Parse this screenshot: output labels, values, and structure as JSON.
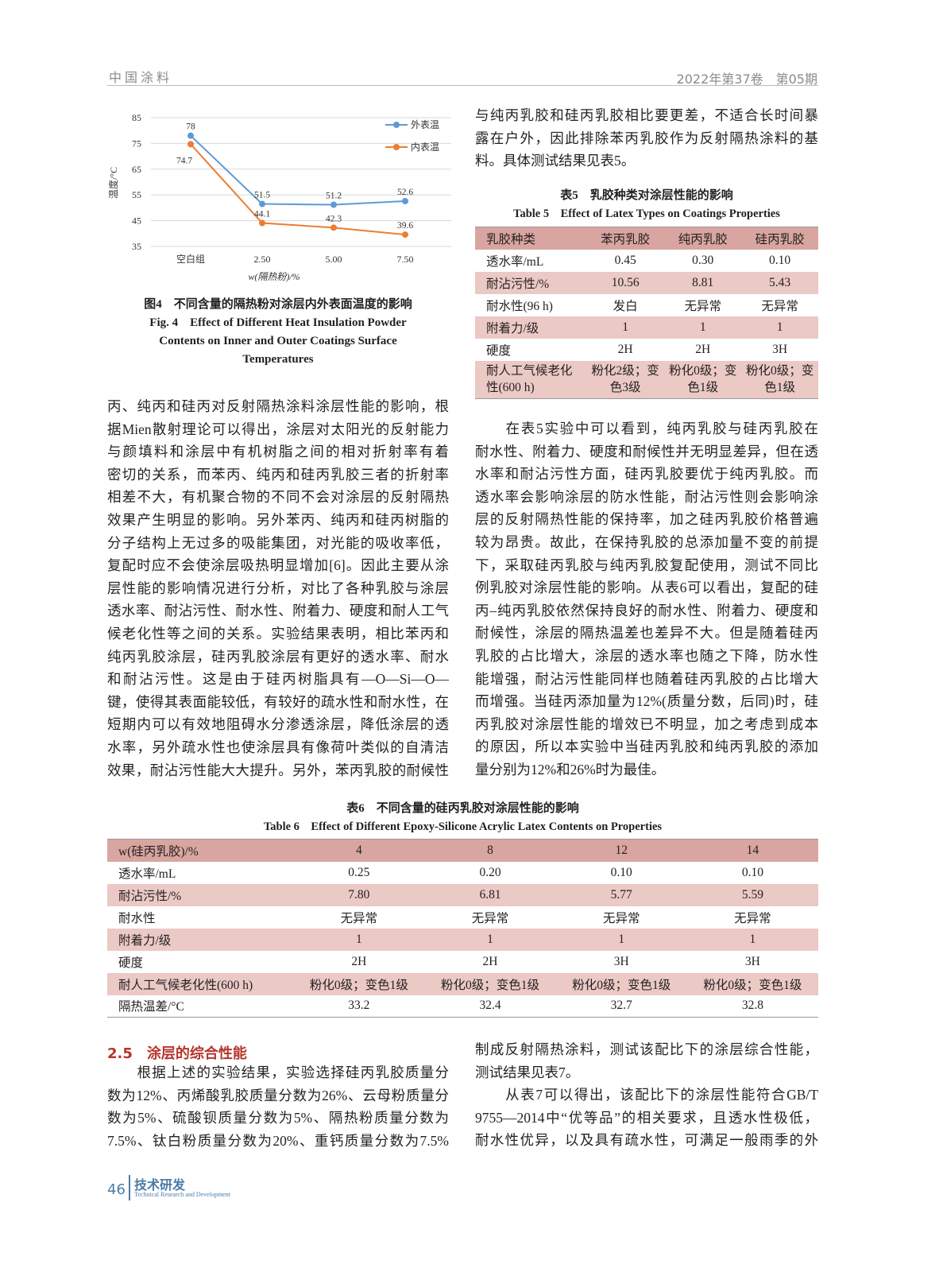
{
  "header": {
    "journal": "中国涂料",
    "issue": "2022年第37卷　第05期"
  },
  "figure4": {
    "caption_cn": "图4　不同含量的隔热粉对涂层内外表面温度的影响",
    "caption_en": [
      "Fig. 4　Effect of Different Heat Insulation Powder",
      "Contents on Inner and Outer Coatings Surface",
      "Temperatures"
    ]
  },
  "chart_data": {
    "type": "line",
    "categories": [
      "空白组",
      "2.50",
      "5.00",
      "7.50"
    ],
    "xlabel": "w(隔热粉)/%",
    "ylabel": "温度/°C",
    "ylim": [
      35,
      85
    ],
    "yticks": [
      "35",
      "45",
      "55",
      "65",
      "75",
      "85"
    ],
    "grid": true,
    "legend": "top-right",
    "series": [
      {
        "name": "外表温",
        "values": [
          78,
          51.5,
          51.2,
          52.6
        ],
        "labels": [
          "78",
          "51.5",
          "51.2",
          "52.6"
        ],
        "color": "#5b9bd5"
      },
      {
        "name": "内表温",
        "values": [
          74.7,
          44.1,
          42.3,
          39.6
        ],
        "labels": [
          "74.7",
          "44.1",
          "42.3",
          "39.6"
        ],
        "color": "#ed7d31"
      }
    ]
  },
  "left_para1": [
    "丙、纯丙和硅丙对反射隔热涂料涂层性能的影响，根",
    "据Mien散射理论可以得出，涂层对太阳光的反射能力",
    "与颜填料和涂层中有机树脂之间的相对折射率有着",
    "密切的关系，而苯丙、纯丙和硅丙乳胶三者的折射率",
    "相差不大，有机聚合物的不同不会对涂层的反射隔热",
    "效果产生明显的影响。另外苯丙、纯丙和硅丙树脂的",
    "分子结构上无过多的吸能集团，对光能的吸收率低，",
    "复配时应不会使涂层吸热明显增加[6]。因此主要从涂",
    "层性能的影响情况进行分析，对比了各种乳胶与涂层",
    "透水率、耐沾污性、耐水性、附着力、硬度和耐人工气",
    "候老化性等之间的关系。实验结果表明，相比苯丙和",
    "纯丙乳胶涂层，硅丙乳胶涂层有更好的透水率、耐水",
    "和耐沾污性。这是由于硅丙树脂具有—O—Si—O—",
    "键，使得其表面能较低，有较好的疏水性和耐水性，在",
    "短期内可以有效地阻碍水分渗透涂层，降低涂层的透",
    "水率，另外疏水性也使涂层具有像荷叶类似的自清洁",
    "效果，耐沾污性能大大提升。另外，苯丙乳胶的耐候性"
  ],
  "right_para1": [
    "与纯丙乳胶和硅丙乳胶相比要更差，不适合长时间暴",
    "露在户外，因此排除苯丙乳胶作为反射隔热涂料的基",
    "料。具体测试结果见表5。"
  ],
  "table5": {
    "title_cn": "表5　乳胶种类对涂层性能的影响",
    "title_en": "Table 5　Effect of Latex Types on Coatings Properties",
    "header": [
      "乳胶种类",
      "苯丙乳胶",
      "纯丙乳胶",
      "硅丙乳胶"
    ],
    "rows": [
      [
        "透水率/mL",
        "0.45",
        "0.30",
        "0.10"
      ],
      [
        "耐沾污性/%",
        "10.56",
        "8.81",
        "5.43"
      ],
      [
        "耐水性(96 h)",
        "发白",
        "无异常",
        "无异常"
      ],
      [
        "附着力/级",
        "1",
        "1",
        "1"
      ],
      [
        "硬度",
        "2H",
        "2H",
        "3H"
      ],
      [
        "耐人工气候老化性(600 h)",
        "粉化2级；变色3级",
        "粉化0级；变色1级",
        "粉化0级；变色1级"
      ]
    ]
  },
  "right_para2": [
    "　　在表5实验中可以看到，纯丙乳胶与硅丙乳胶在",
    "耐水性、附着力、硬度和耐候性并无明显差异，但在透",
    "水率和耐沾污性方面，硅丙乳胶要优于纯丙乳胶。而",
    "透水率会影响涂层的防水性能，耐沾污性则会影响涂",
    "层的反射隔热性能的保持率，加之硅丙乳胶价格普遍",
    "较为昂贵。故此，在保持乳胶的总添加量不变的前提",
    "下，采取硅丙乳胶与纯丙乳胶复配使用，测试不同比",
    "例乳胶对涂层性能的影响。从表6可以看出，复配的硅",
    "丙–纯丙乳胶依然保持良好的耐水性、附着力、硬度和",
    "耐候性，涂层的隔热温差也差异不大。但是随着硅丙",
    "乳胶的占比增大，涂层的透水率也随之下降，防水性",
    "能增强，耐沾污性能同样也随着硅丙乳胶的占比增大",
    "而增强。当硅丙添加量为12%(质量分数，后同)时，硅",
    "丙乳胶对涂层性能的增效已不明显，加之考虑到成本",
    "的原因，所以本实验中当硅丙乳胶和纯丙乳胶的添加",
    "量分别为12%和26%时为最佳。"
  ],
  "table6": {
    "title_cn": "表6　不同含量的硅丙乳胶对涂层性能的影响",
    "title_en": "Table 6　Effect of Different Epoxy-Silicone Acrylic Latex Contents on Properties",
    "header": [
      "w(硅丙乳胶)/%",
      "4",
      "8",
      "12",
      "14"
    ],
    "rows": [
      [
        "透水率/mL",
        "0.25",
        "0.20",
        "0.10",
        "0.10"
      ],
      [
        "耐沾污性/%",
        "7.80",
        "6.81",
        "5.77",
        "5.59"
      ],
      [
        "耐水性",
        "无异常",
        "无异常",
        "无异常",
        "无异常"
      ],
      [
        "附着力/级",
        "1",
        "1",
        "1",
        "1"
      ],
      [
        "硬度",
        "2H",
        "2H",
        "3H",
        "3H"
      ],
      [
        "耐人工气候老化性(600 h)",
        "粉化0级；变色1级",
        "粉化0级；变色1级",
        "粉化0级；变色1级",
        "粉化0级；变色1级"
      ],
      [
        "隔热温差/°C",
        "33.2",
        "32.4",
        "32.7",
        "32.8"
      ]
    ]
  },
  "section": {
    "title": "2.5　涂层的综合性能"
  },
  "left_para2": [
    "　　根据上述的实验结果，实验选择硅丙乳胶质量分",
    "数为12%、丙烯酸乳胶质量分数为26%、云母粉质量分",
    "数为5%、硫酸钡质量分数为5%、隔热粉质量分数为",
    "7.5%、钛白粉质量分数为20%、重钙质量分数为7.5%"
  ],
  "right_para3": [
    "制成反射隔热涂料，测试该配比下的涂层综合性能，",
    "测试结果见表7。",
    "　　从表7可以得出，该配比下的涂层性能符合GB/T",
    "9755—2014中“优等品”的相关要求，且透水性极低，",
    "耐水性优异，以及具有疏水性，可满足一般雨季的外"
  ],
  "footer": {
    "page": "46",
    "section_cn": "技术研发",
    "section_en": "Technical Research and Development"
  },
  "colors": {
    "table_header": "#d9a5a0",
    "table_alt": "#ebc9c5",
    "accent": "#b5352c",
    "footer": "#4a7ca8"
  }
}
